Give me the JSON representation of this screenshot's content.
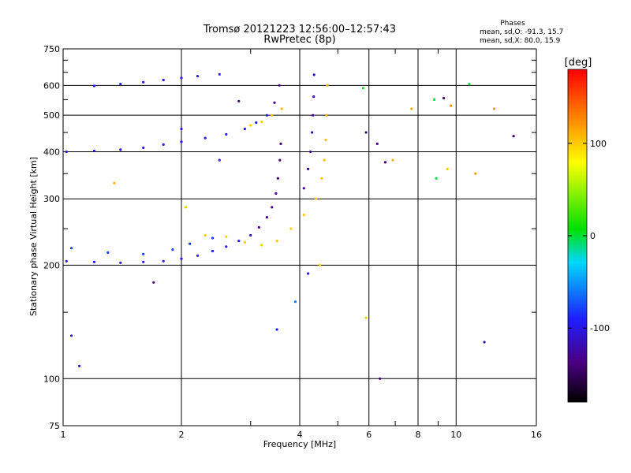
{
  "chart_data": {
    "type": "scatter",
    "title": "Tromsø 20121223 12:56:00–12:57:43",
    "subtitle": "RwPretec (8p)",
    "xlabel": "Frequency [MHz]",
    "ylabel": "Stationary phase Virtual Height [km]",
    "x_scale": "log",
    "y_scale": "log",
    "xlim": [
      1,
      16
    ],
    "ylim": [
      75,
      750
    ],
    "x_ticks": [
      1,
      2,
      4,
      6,
      8,
      10,
      16
    ],
    "x_minor_ticks": [
      3,
      5,
      7,
      9
    ],
    "y_ticks": [
      75,
      100,
      200,
      300,
      400,
      500,
      600,
      750
    ],
    "y_minor_ticks": [
      150,
      250,
      350,
      450,
      550,
      650,
      700
    ],
    "grid": true,
    "info": {
      "heading": "Phases",
      "line_o": "mean, sd,O: -91.3, 15.7",
      "line_x": "mean, sd,X:  80.0, 15.9"
    },
    "colorbar": {
      "label": "[deg]",
      "range": [
        -180,
        180
      ],
      "ticks": [
        -100,
        0,
        100
      ]
    },
    "series": [
      {
        "points": [
          [
            1.02,
            205,
            -95
          ],
          [
            1.2,
            204,
            -95
          ],
          [
            1.4,
            203,
            -92
          ],
          [
            1.6,
            204,
            -92
          ],
          [
            1.8,
            205,
            -95
          ],
          [
            2.0,
            208,
            -92
          ],
          [
            2.2,
            212,
            -100
          ],
          [
            2.4,
            218,
            -92
          ],
          [
            2.6,
            224,
            -95
          ],
          [
            2.8,
            232,
            -95
          ],
          [
            3.0,
            240,
            -115
          ],
          [
            3.15,
            252,
            -125
          ],
          [
            3.3,
            268,
            -130
          ],
          [
            3.4,
            285,
            -132
          ],
          [
            3.48,
            310,
            -135
          ],
          [
            3.52,
            340,
            -135
          ],
          [
            3.56,
            380,
            -137
          ],
          [
            3.58,
            420,
            -140
          ]
        ]
      },
      {
        "points": [
          [
            1.05,
            222,
            -80
          ],
          [
            1.3,
            216,
            -78
          ],
          [
            1.6,
            214,
            -78
          ],
          [
            1.9,
            220,
            -78
          ],
          [
            2.1,
            228,
            -78
          ],
          [
            2.4,
            236,
            -80
          ]
        ]
      },
      {
        "points": [
          [
            1.02,
            400,
            -95
          ],
          [
            1.2,
            402,
            -95
          ],
          [
            1.4,
            405,
            -95
          ],
          [
            1.6,
            410,
            -95
          ],
          [
            1.8,
            418,
            -95
          ],
          [
            2.0,
            425,
            -95
          ],
          [
            2.3,
            435,
            -92
          ],
          [
            2.6,
            445,
            -92
          ],
          [
            2.9,
            460,
            -92
          ],
          [
            3.1,
            478,
            -95
          ],
          [
            3.3,
            500,
            -100
          ],
          [
            3.45,
            540,
            -130
          ],
          [
            3.55,
            600,
            -132
          ]
        ]
      },
      {
        "points": [
          [
            1.2,
            598,
            -95
          ],
          [
            1.4,
            605,
            -90
          ],
          [
            1.6,
            612,
            -95
          ],
          [
            1.8,
            620,
            -95
          ],
          [
            2.0,
            628,
            -95
          ],
          [
            2.2,
            635,
            -90
          ],
          [
            2.5,
            642,
            -92
          ]
        ]
      },
      {
        "points": [
          [
            2.3,
            240,
            100
          ],
          [
            2.6,
            238,
            100
          ],
          [
            2.9,
            230,
            100
          ],
          [
            3.2,
            226,
            100
          ],
          [
            3.5,
            232,
            105
          ],
          [
            3.8,
            250,
            100
          ],
          [
            4.1,
            272,
            100
          ],
          [
            4.4,
            300,
            100
          ],
          [
            4.55,
            340,
            105
          ],
          [
            4.62,
            380,
            105
          ],
          [
            4.66,
            430,
            108
          ],
          [
            4.68,
            500,
            110
          ],
          [
            4.7,
            600,
            110
          ]
        ]
      },
      {
        "points": [
          [
            3.0,
            470,
            100
          ],
          [
            3.2,
            480,
            100
          ],
          [
            3.4,
            500,
            105
          ],
          [
            3.6,
            520,
            108
          ]
        ]
      },
      {
        "points": [
          [
            4.1,
            320,
            -130
          ],
          [
            4.2,
            360,
            -130
          ],
          [
            4.26,
            400,
            -130
          ],
          [
            4.3,
            450,
            -125
          ],
          [
            4.32,
            500,
            -125
          ],
          [
            4.34,
            560,
            -120
          ],
          [
            4.35,
            640,
            -110
          ]
        ]
      },
      {
        "points": [
          [
            1.35,
            330,
            110
          ],
          [
            1.7,
            180,
            -140
          ],
          [
            2.05,
            285,
            100
          ],
          [
            2.8,
            545,
            -140
          ],
          [
            3.5,
            135,
            -90
          ],
          [
            3.9,
            160,
            -60
          ],
          [
            4.2,
            190,
            -100
          ],
          [
            4.5,
            200,
            100
          ],
          [
            5.8,
            590,
            0
          ],
          [
            5.9,
            450,
            -140
          ],
          [
            5.9,
            145,
            100
          ],
          [
            6.3,
            420,
            -140
          ],
          [
            6.4,
            100,
            -140
          ],
          [
            6.6,
            375,
            -140
          ],
          [
            6.9,
            380,
            110
          ],
          [
            7.7,
            520,
            110
          ],
          [
            8.8,
            550,
            0
          ],
          [
            8.9,
            340,
            0
          ],
          [
            9.3,
            555,
            -140
          ],
          [
            9.5,
            360,
            100
          ],
          [
            9.7,
            530,
            120
          ],
          [
            10.8,
            605,
            0
          ],
          [
            11.2,
            350,
            120
          ],
          [
            11.8,
            125,
            -120
          ],
          [
            12.5,
            520,
            120
          ],
          [
            14.0,
            440,
            -140
          ],
          [
            2.5,
            380,
            -100
          ],
          [
            2.0,
            460,
            -100
          ],
          [
            1.05,
            130,
            -100
          ],
          [
            1.1,
            108,
            -100
          ]
        ]
      }
    ]
  }
}
